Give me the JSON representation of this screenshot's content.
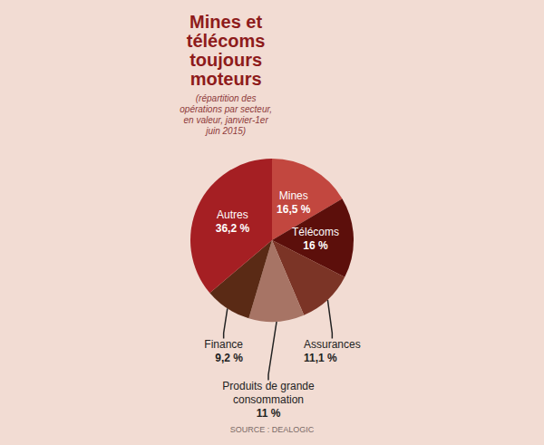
{
  "chart_data": {
    "type": "pie",
    "title": "Mines et télécoms toujours moteurs",
    "subtitle": "(répartition des opérations par secteur, en valeur, janvier-1er juin 2015)",
    "source": "SOURCE : DEALOGIC",
    "categories": [
      "Mines",
      "Télécoms",
      "Assurances",
      "Produits de grande consommation",
      "Finance",
      "Autres"
    ],
    "values": [
      16.5,
      16,
      11.1,
      11,
      9.2,
      36.2
    ],
    "value_labels": [
      "16,5 %",
      "16 %",
      "11,1 %",
      "11 %",
      "9,2 %",
      "36,2 %"
    ],
    "colors": [
      "#c2473f",
      "#5c0f0b",
      "#7b3426",
      "#a77465",
      "#5a2a15",
      "#a51f23"
    ],
    "data_labels": true
  }
}
